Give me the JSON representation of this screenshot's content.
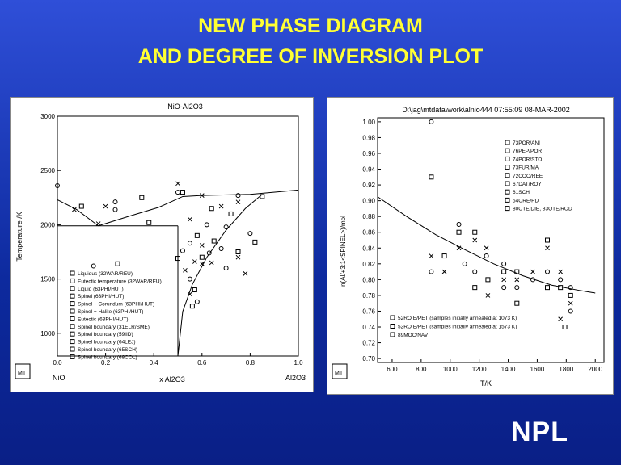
{
  "slide": {
    "title_line1": "NEW PHASE DIAGRAM",
    "title_line2": "AND DEGREE OF INVERSION PLOT",
    "logo": "NPL"
  },
  "chart_data": [
    {
      "type": "scatter",
      "title": "NiO-Al2O3",
      "xlabel": "x Al2O3",
      "ylabel": "Temperature /K",
      "x_left_label": "NiO",
      "x_right_label": "Al2O3",
      "xlim": [
        0,
        1
      ],
      "ylim": [
        790,
        3000
      ],
      "xticks": [
        "0.0",
        "0.2",
        "0.4",
        "0.6",
        "0.8",
        "1.0"
      ],
      "yticks": [
        "1000",
        "1500",
        "2000",
        "2500",
        "3000"
      ],
      "legend": [
        "Liquidus (32WAR/REU)",
        "Eutectic temperature (32WAR/REU)",
        "Liquid (63PHI/HUT)",
        "Spinel (63PHI/HUT)",
        "Spinel + Corundum (63PHI/HUT)",
        "Spinel + Halite (63PHI/HUT)",
        "Eutectic (63PHI/HUT)",
        "Spinel boundary (31ELR/SME)",
        "Spinel boundary (59IID)",
        "Spinel boundary (64LEJ)",
        "Spinel boundary (65SCH)",
        "Spinel boundary (68COL)"
      ],
      "lines": [
        {
          "name": "liquidus-nio",
          "x": [
            0,
            0.08,
            0.17,
            0.3,
            0.42,
            0.47,
            0.52,
            0.6,
            0.8,
            1.0
          ],
          "y": [
            2230,
            2140,
            1990,
            2080,
            2160,
            2210,
            2260,
            2270,
            2280,
            2320
          ]
        },
        {
          "name": "eutectic",
          "x": [
            0,
            0.5
          ],
          "y": [
            1990,
            1990
          ]
        },
        {
          "name": "spinel-left",
          "x": [
            0.5,
            0.5
          ],
          "y": [
            1990,
            790
          ]
        },
        {
          "name": "spinel-right",
          "x": [
            0.5,
            0.52,
            0.56,
            0.62,
            0.7,
            0.78,
            0.85
          ],
          "y": [
            790,
            1200,
            1450,
            1700,
            1950,
            2150,
            2280
          ]
        }
      ],
      "points": [
        [
          0.0,
          2360
        ],
        [
          0.1,
          2170
        ],
        [
          0.2,
          2170
        ],
        [
          0.24,
          2210
        ],
        [
          0.35,
          2250
        ],
        [
          0.5,
          2380
        ],
        [
          0.5,
          2300
        ],
        [
          0.52,
          2300
        ],
        [
          0.6,
          2270
        ],
        [
          0.75,
          2270
        ],
        [
          0.85,
          2260
        ],
        [
          0.07,
          2140
        ],
        [
          0.24,
          2140
        ],
        [
          0.38,
          2020
        ],
        [
          0.17,
          2010
        ],
        [
          0.15,
          1620
        ],
        [
          0.25,
          1640
        ],
        [
          0.55,
          2050
        ],
        [
          0.62,
          2000
        ],
        [
          0.64,
          2150
        ],
        [
          0.68,
          2170
        ],
        [
          0.7,
          1980
        ],
        [
          0.72,
          2100
        ],
        [
          0.75,
          2210
        ],
        [
          0.55,
          1830
        ],
        [
          0.58,
          1900
        ],
        [
          0.6,
          1810
        ],
        [
          0.63,
          1740
        ],
        [
          0.6,
          1700
        ],
        [
          0.57,
          1660
        ],
        [
          0.52,
          1760
        ],
        [
          0.5,
          1690
        ],
        [
          0.53,
          1580
        ],
        [
          0.55,
          1500
        ],
        [
          0.57,
          1400
        ],
        [
          0.55,
          1360
        ],
        [
          0.58,
          1290
        ],
        [
          0.56,
          1250
        ],
        [
          0.64,
          1650
        ],
        [
          0.68,
          1780
        ],
        [
          0.75,
          1750
        ],
        [
          0.75,
          1700
        ],
        [
          0.8,
          1920
        ],
        [
          0.82,
          1840
        ],
        [
          0.78,
          1550
        ],
        [
          0.7,
          1600
        ],
        [
          0.65,
          1850
        ],
        [
          0.6,
          1640
        ]
      ]
    },
    {
      "type": "scatter",
      "title": "D:\\jag\\mtdata\\work\\alnio444  07:55:09  08-MAR-2002",
      "xlabel": "T/K",
      "ylabel": "n(Al/+3:1<SPINEL>)/mol",
      "xlim": [
        500,
        2060
      ],
      "ylim": [
        0.695,
        1.005
      ],
      "xticks": [
        "600",
        "800",
        "1000",
        "1200",
        "1400",
        "1600",
        "1800",
        "2000"
      ],
      "yticks": [
        "0.70",
        "0.72",
        "0.74",
        "0.76",
        "0.78",
        "0.80",
        "0.82",
        "0.84",
        "0.86",
        "0.88",
        "0.90",
        "0.92",
        "0.94",
        "0.96",
        "0.98",
        "1.00"
      ],
      "legend_top": [
        "73POR/ANI",
        "76PEP/POR",
        "74POR/STO",
        "73FUR/MA",
        "72COO/REE",
        "67DAT/ROY",
        "61SCH",
        "54ORE/PD",
        "80OTE/DIE, 83OTE/ROD"
      ],
      "legend_bottom": [
        "52RO E/PET (samples initially annealed at 1073 K)",
        "52RO E/PET (samples initially annealed at 1573 K)",
        "89MOC/NAV"
      ],
      "curve": {
        "x": [
          500,
          700,
          900,
          1100,
          1300,
          1500,
          1700,
          1900,
          2000
        ],
        "y": [
          0.905,
          0.88,
          0.857,
          0.838,
          0.82,
          0.805,
          0.793,
          0.786,
          0.783
        ]
      },
      "points": [
        [
          870,
          1.0
        ],
        [
          870,
          0.93
        ],
        [
          870,
          0.83
        ],
        [
          870,
          0.81
        ],
        [
          960,
          0.83
        ],
        [
          960,
          0.81
        ],
        [
          1060,
          0.87
        ],
        [
          1060,
          0.86
        ],
        [
          1060,
          0.84
        ],
        [
          1100,
          0.82
        ],
        [
          1170,
          0.86
        ],
        [
          1170,
          0.85
        ],
        [
          1170,
          0.81
        ],
        [
          1170,
          0.79
        ],
        [
          1250,
          0.84
        ],
        [
          1250,
          0.83
        ],
        [
          1260,
          0.8
        ],
        [
          1260,
          0.78
        ],
        [
          1370,
          0.82
        ],
        [
          1370,
          0.81
        ],
        [
          1370,
          0.8
        ],
        [
          1370,
          0.79
        ],
        [
          1460,
          0.81
        ],
        [
          1460,
          0.8
        ],
        [
          1460,
          0.79
        ],
        [
          1460,
          0.77
        ],
        [
          1570,
          0.81
        ],
        [
          1570,
          0.8
        ],
        [
          1670,
          0.85
        ],
        [
          1670,
          0.84
        ],
        [
          1670,
          0.81
        ],
        [
          1670,
          0.79
        ],
        [
          1760,
          0.81
        ],
        [
          1760,
          0.8
        ],
        [
          1760,
          0.79
        ],
        [
          1760,
          0.75
        ],
        [
          1830,
          0.79
        ],
        [
          1830,
          0.78
        ],
        [
          1830,
          0.77
        ],
        [
          1830,
          0.76
        ],
        [
          1790,
          0.74
        ]
      ]
    }
  ]
}
